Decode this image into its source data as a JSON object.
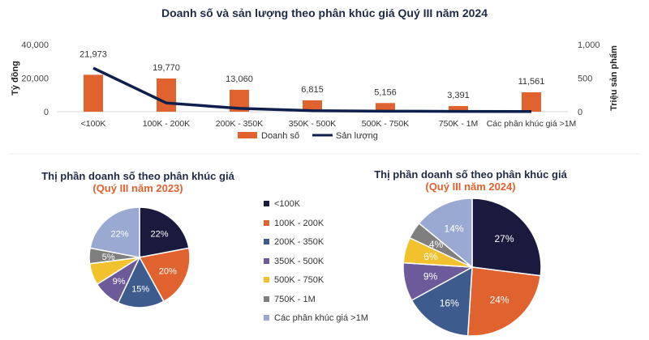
{
  "chart_data": [
    {
      "type": "bar+line",
      "title": "Doanh số và sản lượng theo phân khúc giá Quý III năm 2024",
      "categories": [
        "<100K",
        "100K - 200K",
        "200K - 350K",
        "350K - 500K",
        "500K - 750K",
        "750K - 1M",
        "Các phân khúc giá >1M"
      ],
      "ylabel": "Tỷ đồng",
      "y2label": "Triệu sản phẩm",
      "ylim": [
        0,
        40000
      ],
      "y2lim": [
        0,
        1000
      ],
      "yticks": [
        "0",
        "20,000",
        "40,000"
      ],
      "y2ticks": [
        "0",
        "500",
        "1,000"
      ],
      "series": [
        {
          "name": "Doanh số",
          "type": "bar",
          "color": "#e0622e",
          "values": [
            21973,
            19770,
            13060,
            6815,
            5156,
            3391,
            11561
          ],
          "labels": [
            "21,973",
            "19,770",
            "13,060",
            "6,815",
            "5,156",
            "3,391",
            "11,561"
          ]
        },
        {
          "name": "Sản lượng",
          "type": "line",
          "axis": "right",
          "color": "#0e1f4d",
          "values": [
            650,
            130,
            50,
            15,
            8,
            5,
            3
          ]
        }
      ],
      "legend": "bottom"
    },
    {
      "type": "pie",
      "title": "Thị phần doanh số theo phân khúc giá",
      "subtitle": "(Quý III năm 2023)",
      "values": [
        22,
        20,
        15,
        9,
        7,
        5,
        22
      ],
      "labels": [
        "22%",
        "20%",
        "15%",
        "9%",
        "",
        "5%",
        "22%"
      ]
    },
    {
      "type": "pie",
      "title": "Thị phần doanh số theo phân khúc giá",
      "subtitle": "(Quý III năm 2024)",
      "values": [
        27,
        24,
        16,
        9,
        6,
        4,
        14
      ],
      "labels": [
        "27%",
        "24%",
        "16%",
        "9%",
        "6%",
        "4%",
        "14%"
      ]
    }
  ],
  "pie_legend": [
    {
      "label": "<100K",
      "color": "#1a1a3e"
    },
    {
      "label": "100K - 200K",
      "color": "#e0622e"
    },
    {
      "label": "200K - 350K",
      "color": "#3e5b8e"
    },
    {
      "label": "350K - 500K",
      "color": "#6c5a9a"
    },
    {
      "label": "500K - 750K",
      "color": "#f2c12e"
    },
    {
      "label": "750K - 1M",
      "color": "#7f7f7f"
    },
    {
      "label": "Các phân khúc giá >1M",
      "color": "#9aa9d1"
    }
  ]
}
